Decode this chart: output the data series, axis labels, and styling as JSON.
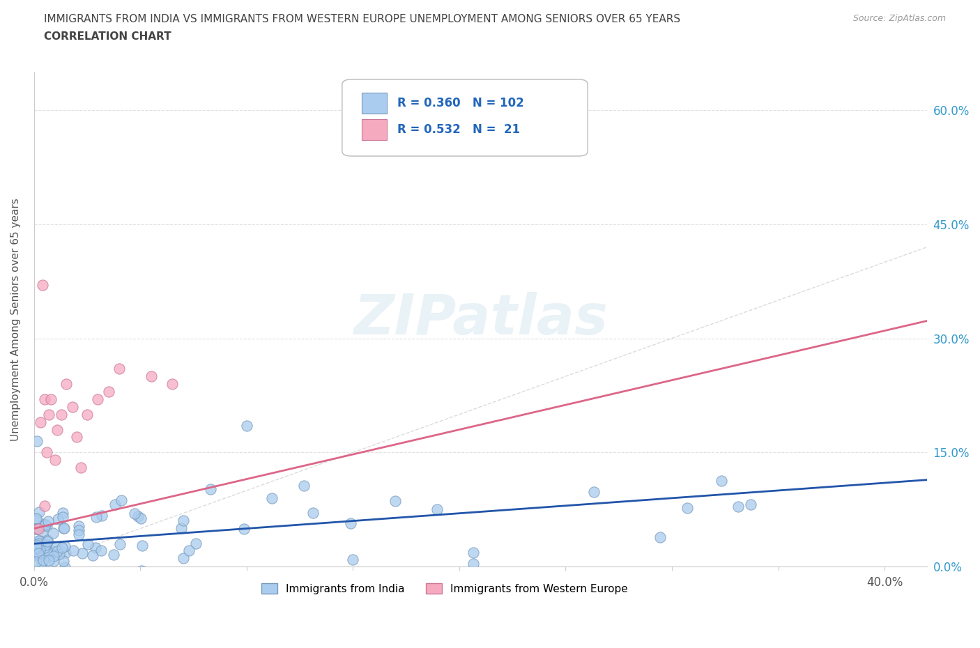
{
  "title_line1": "IMMIGRANTS FROM INDIA VS IMMIGRANTS FROM WESTERN EUROPE UNEMPLOYMENT AMONG SENIORS OVER 65 YEARS",
  "title_line2": "CORRELATION CHART",
  "source": "Source: ZipAtlas.com",
  "ylabel": "Unemployment Among Seniors over 65 years",
  "xlim": [
    0.0,
    0.42
  ],
  "ylim": [
    -0.02,
    0.65
  ],
  "plot_ylim": [
    0.0,
    0.65
  ],
  "xtick_vals": [
    0.0,
    0.05,
    0.1,
    0.15,
    0.2,
    0.25,
    0.3,
    0.35,
    0.4
  ],
  "ytick_vals": [
    0.0,
    0.15,
    0.3,
    0.45,
    0.6
  ],
  "right_ytick_labels": [
    "0.0%",
    "15.0%",
    "30.0%",
    "45.0%",
    "60.0%"
  ],
  "india_color": "#aaccee",
  "india_edge_color": "#7799bb",
  "we_color": "#f5aac0",
  "we_edge_color": "#cc7799",
  "india_R": 0.36,
  "india_N": 102,
  "we_R": 0.532,
  "we_N": 21,
  "india_line_color": "#2255aa",
  "we_line_color": "#dd6688",
  "diag_line_color": "#cccccc",
  "legend_label_india": "Immigrants from India",
  "legend_label_we": "Immigrants from Western Europe",
  "watermark": "ZIPatlas",
  "title_color": "#444444",
  "axis_label_color": "#555555",
  "right_axis_color": "#3399cc",
  "grid_color": "#e0e0e0",
  "source_color": "#999999",
  "legend_text_color": "#2266bb"
}
